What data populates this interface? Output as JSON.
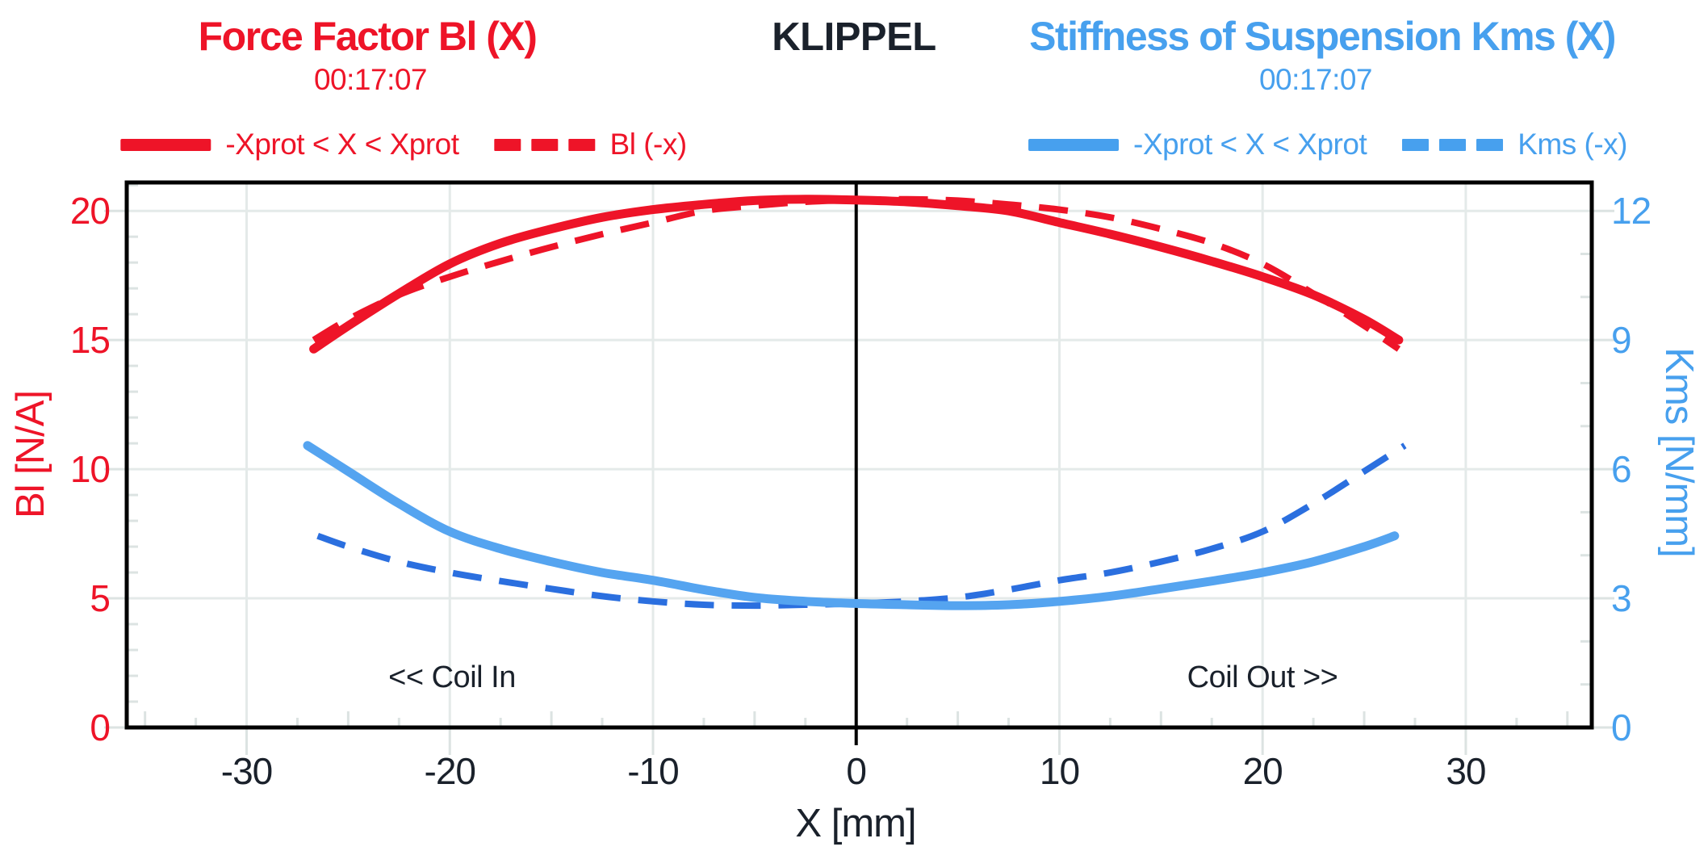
{
  "header": {
    "left_title": "Force Factor Bl (X)",
    "left_subtitle": "00:17:07",
    "brand": "KLIPPEL",
    "right_title": "Stiffness of Suspension Kms (X)",
    "right_subtitle": "00:17:07"
  },
  "legends": {
    "left": {
      "solid_label": "-Xprot < X < Xprot",
      "dashed_label": "Bl (-x)"
    },
    "right": {
      "solid_label": "-Xprot < X < Xprot",
      "dashed_label": "Kms (-x)"
    }
  },
  "annotations": {
    "coil_in": "<< Coil In",
    "coil_out": "Coil Out >>"
  },
  "colors": {
    "red": "#ee1428",
    "blue": "#47a0ee",
    "blue_dashed": "#2b6fdf",
    "dark": "#1a212b",
    "grid": "#e4eae9",
    "minor_tick": "#dce3e2",
    "axis": "#000000"
  },
  "chart_data": {
    "type": "line",
    "title_left": "Force Factor Bl (X)",
    "title_right": "Stiffness of Suspension Kms (X)",
    "x_axis": {
      "label": "X [mm]",
      "min": -35.9,
      "max": 36.2,
      "major_ticks": [
        -30,
        -20,
        -10,
        0,
        10,
        20,
        30
      ],
      "minor_step": 2.5
    },
    "y_left": {
      "label": "Bl [N/A]",
      "min": 0,
      "max": 21.1,
      "major_ticks": [
        0,
        5,
        10,
        15,
        20
      ],
      "minor_step": 1
    },
    "y_right": {
      "label": "Kms [N/mm]",
      "min": 0,
      "max": 12.66,
      "major_ticks": [
        0,
        3,
        6,
        9,
        12
      ],
      "minor_step": 1
    },
    "grid": "major-only",
    "legend_position": "top",
    "series": [
      {
        "id": "bl_solid",
        "name": "-Xprot < X < Xprot",
        "axis": "left",
        "style": "solid",
        "color": "#ee1428",
        "x": [
          -26.7,
          -25,
          -22.5,
          -20,
          -17.5,
          -15,
          -12.5,
          -10,
          -7.5,
          -5,
          -2.5,
          0,
          2.5,
          5,
          7.5,
          10,
          12.5,
          15,
          17.5,
          20,
          22.5,
          25,
          26.7
        ],
        "y": [
          14.65,
          15.55,
          16.8,
          17.95,
          18.75,
          19.3,
          19.75,
          20.05,
          20.25,
          20.4,
          20.45,
          20.42,
          20.35,
          20.2,
          20.0,
          19.55,
          19.1,
          18.6,
          18.05,
          17.45,
          16.75,
          15.8,
          15.0
        ]
      },
      {
        "id": "bl_mirror",
        "name": "Bl (-x)",
        "axis": "left",
        "style": "dashed",
        "color": "#ee1428",
        "mirror_of": "bl_solid"
      },
      {
        "id": "kms_solid",
        "name": "-Xprot < X < Xprot",
        "axis": "right",
        "style": "solid",
        "color": "#55a4f0",
        "x": [
          -27,
          -25,
          -22.5,
          -20,
          -17.5,
          -15,
          -12.5,
          -10,
          -7.5,
          -5,
          -2.5,
          0,
          2.5,
          5,
          7.5,
          10,
          12.5,
          15,
          17.5,
          20,
          22.5,
          25,
          26.5
        ],
        "y": [
          6.55,
          5.95,
          5.2,
          4.55,
          4.15,
          3.85,
          3.6,
          3.42,
          3.2,
          3.02,
          2.93,
          2.88,
          2.85,
          2.83,
          2.85,
          2.93,
          3.05,
          3.22,
          3.4,
          3.6,
          3.85,
          4.2,
          4.45
        ]
      },
      {
        "id": "kms_mirror",
        "name": "Kms (-x)",
        "axis": "right",
        "style": "dashed",
        "color": "#2b6fdf",
        "mirror_of": "kms_solid"
      }
    ]
  }
}
